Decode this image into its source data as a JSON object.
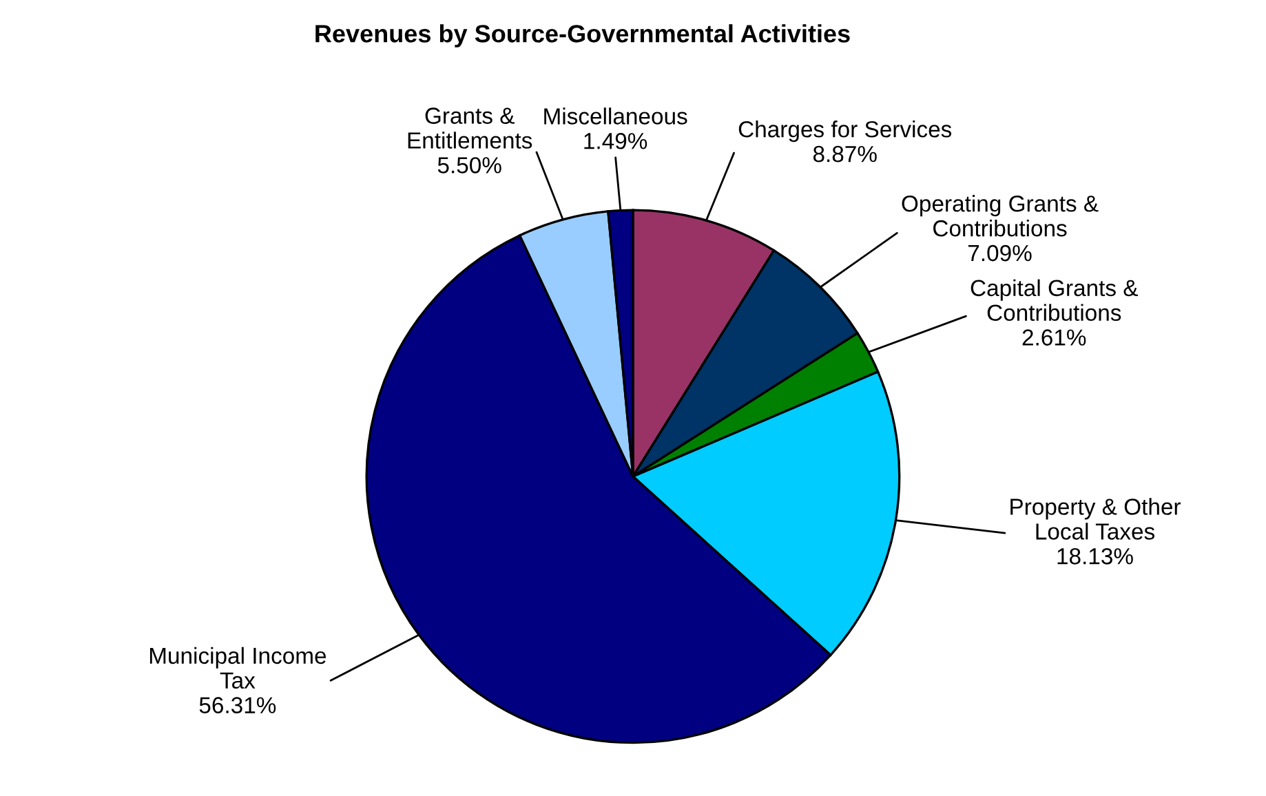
{
  "chart_data": {
    "type": "pie",
    "title": "Revenues by Source-Governmental Activities",
    "categories": [
      "Charges for Services",
      "Operating Grants &\nContributions",
      "Capital Grants &\nContributions",
      "Property & Other\nLocal Taxes",
      "Municipal Income\nTax",
      "Grants &\nEntitlements",
      "Miscellaneous"
    ],
    "values": [
      8.87,
      7.09,
      2.61,
      18.13,
      56.31,
      5.5,
      1.49
    ],
    "value_labels": [
      "8.87%",
      "7.09%",
      "2.61%",
      "18.13%",
      "56.31%",
      "5.50%",
      "1.49%"
    ],
    "colors": [
      "#993366",
      "#003366",
      "#008000",
      "#00ccff",
      "#000080",
      "#99ccff",
      "#000080"
    ],
    "legend": false
  }
}
